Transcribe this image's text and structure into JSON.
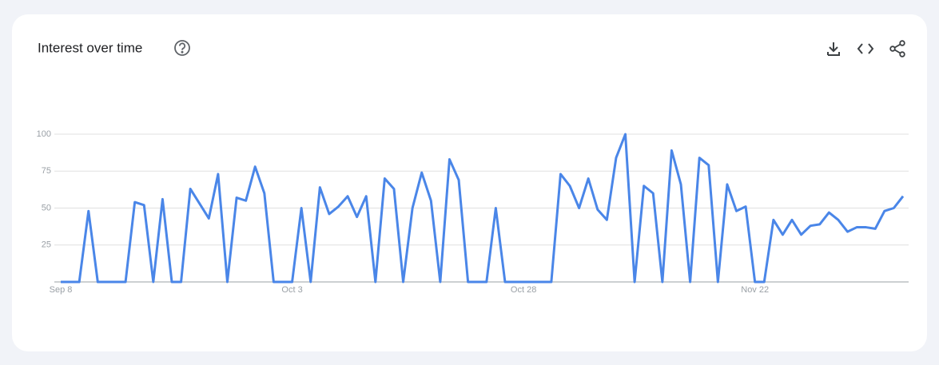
{
  "chart_data": {
    "type": "line",
    "title": "Interest over time",
    "categories": [
      "Sep 8",
      null,
      null,
      null,
      null,
      null,
      null,
      null,
      null,
      null,
      null,
      null,
      null,
      null,
      null,
      null,
      null,
      null,
      null,
      null,
      null,
      null,
      null,
      null,
      null,
      "Oct 3",
      null,
      null,
      null,
      null,
      null,
      null,
      null,
      null,
      null,
      null,
      null,
      null,
      null,
      null,
      null,
      null,
      null,
      null,
      null,
      null,
      null,
      null,
      null,
      null,
      "Oct 28",
      null,
      null,
      null,
      null,
      null,
      null,
      null,
      null,
      null,
      null,
      null,
      null,
      null,
      null,
      null,
      null,
      null,
      null,
      null,
      null,
      null,
      null,
      null,
      null,
      "Nov 22",
      null,
      null,
      null,
      null,
      null,
      null,
      null,
      null,
      null,
      null,
      null,
      null,
      null,
      null,
      null,
      null
    ],
    "values": [
      0,
      0,
      0,
      48,
      0,
      0,
      0,
      0,
      54,
      52,
      0,
      56,
      0,
      0,
      63,
      53,
      43,
      73,
      0,
      57,
      55,
      78,
      60,
      0,
      0,
      0,
      50,
      0,
      64,
      46,
      51,
      58,
      44,
      58,
      0,
      70,
      63,
      0,
      50,
      74,
      55,
      0,
      83,
      69,
      0,
      0,
      0,
      50,
      0,
      0,
      0,
      0,
      0,
      0,
      73,
      65,
      50,
      70,
      49,
      42,
      84,
      100,
      0,
      65,
      60,
      0,
      89,
      66,
      0,
      84,
      79,
      0,
      66,
      48,
      51,
      0,
      0,
      42,
      32,
      42,
      32,
      38,
      39,
      47,
      42,
      34,
      37,
      37,
      36,
      48,
      50,
      58
    ],
    "color": "#4a86e8",
    "ylim": [
      0,
      100
    ],
    "yticks": [
      25,
      50,
      75,
      100
    ],
    "grid": true
  }
}
